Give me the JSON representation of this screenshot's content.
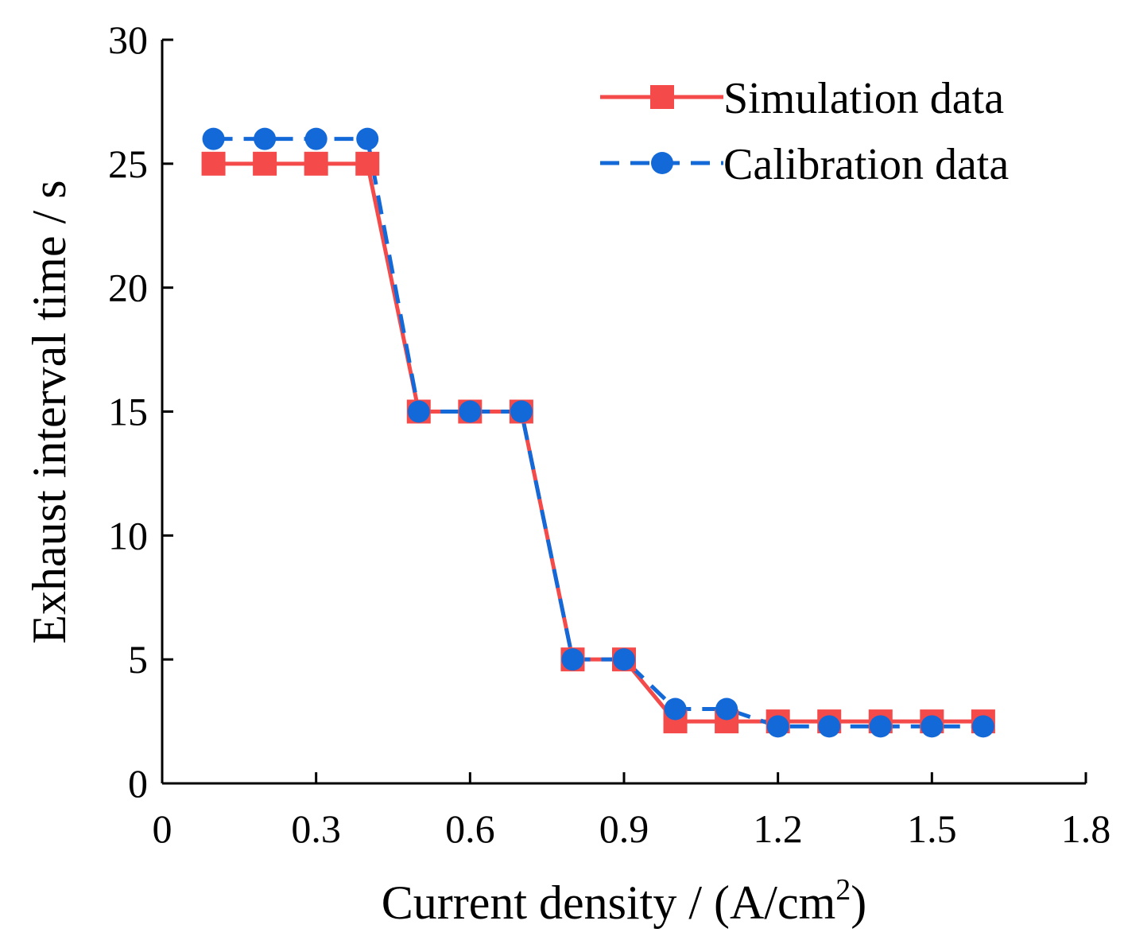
{
  "chart_data": {
    "type": "line",
    "xlabel_main": "Current density / (A/cm",
    "xlabel_sup": "2",
    "xlabel_close": ")",
    "ylabel": "Exhaust interval time / s",
    "xlim": [
      0,
      1.8
    ],
    "ylim": [
      0,
      30
    ],
    "x_ticks": [
      0,
      0.3,
      0.6,
      0.9,
      1.2,
      1.5,
      1.8
    ],
    "x_tick_labels": [
      "0",
      "0.3",
      "0.6",
      "0.9",
      "1.2",
      "1.5",
      "1.8"
    ],
    "y_ticks": [
      0,
      5,
      10,
      15,
      20,
      25,
      30
    ],
    "y_tick_labels": [
      "0",
      "5",
      "10",
      "15",
      "20",
      "25",
      "30"
    ],
    "grid": false,
    "legend_position": "top-right",
    "series": [
      {
        "name": "Simulation data",
        "color": "#f44a4a",
        "line_style": "solid",
        "marker": "square",
        "x": [
          0.1,
          0.2,
          0.3,
          0.4,
          0.5,
          0.6,
          0.7,
          0.8,
          0.9,
          1.0,
          1.1,
          1.2,
          1.3,
          1.4,
          1.5,
          1.6
        ],
        "y": [
          25,
          25,
          25,
          25,
          15,
          15,
          15,
          5,
          5,
          2.5,
          2.5,
          2.5,
          2.5,
          2.5,
          2.5,
          2.5
        ]
      },
      {
        "name": "Calibration data",
        "color": "#1469d8",
        "line_style": "dashed",
        "marker": "circle",
        "x": [
          0.1,
          0.2,
          0.3,
          0.4,
          0.5,
          0.6,
          0.7,
          0.8,
          0.9,
          1.0,
          1.1,
          1.2,
          1.3,
          1.4,
          1.5,
          1.6
        ],
        "y": [
          26,
          26,
          26,
          26,
          15,
          15,
          15,
          5,
          5,
          3,
          3,
          2.3,
          2.3,
          2.3,
          2.3,
          2.3
        ]
      }
    ]
  }
}
